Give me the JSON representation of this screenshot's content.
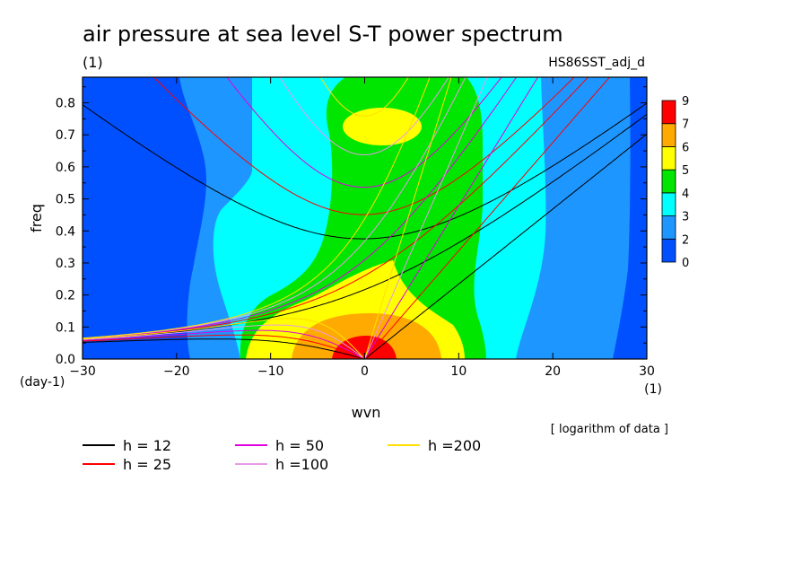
{
  "header": {
    "title": "air pressure at sea level S-T power spectrum",
    "units": "(1)",
    "experiment": "HS86SST_adj_d"
  },
  "axes": {
    "x_label": "wvn",
    "x_unit": "(1)",
    "y_label": "freq",
    "y_unit": "(day-1)",
    "x_ticks": [
      "-30",
      "-20",
      "-10",
      "0",
      "10",
      "20",
      "30"
    ],
    "y_ticks": [
      "0.0",
      "0.1",
      "0.2",
      "0.3",
      "0.4",
      "0.5",
      "0.6",
      "0.7",
      "0.8"
    ]
  },
  "colorbar": {
    "labels": [
      "0",
      "2",
      "3",
      "4",
      "5",
      "6",
      "7",
      "9"
    ],
    "colors": [
      "#0050ff",
      "#1e96ff",
      "#00ffff",
      "#00e600",
      "#ffff00",
      "#ffaa00",
      "#ff0000"
    ]
  },
  "note": "[ logarithm of data ]",
  "legend": [
    {
      "label": "h = 12",
      "color": "#000000"
    },
    {
      "label": "h = 25",
      "color": "#ff0000"
    },
    {
      "label": "h = 50",
      "color": "#e000e0"
    },
    {
      "label": "h =100",
      "color": "#e89ae8"
    },
    {
      "label": "h =200",
      "color": "#ffe000"
    }
  ],
  "chart_data": {
    "type": "heatmap",
    "title": "air pressure at sea level S-T power spectrum",
    "xlabel": "wvn",
    "ylabel": "freq",
    "xlim": [
      -30,
      30
    ],
    "ylim": [
      0,
      0.88
    ],
    "levels": [
      0,
      2,
      3,
      4,
      5,
      6,
      7,
      9
    ],
    "scale": "logarithm of data",
    "dispersion_curves": {
      "equivalent_depths_m": [
        12,
        25,
        50,
        100,
        200
      ],
      "colors": [
        "#000000",
        "#ff0000",
        "#e000e0",
        "#e89ae8",
        "#ffe000"
      ]
    },
    "regions": [
      {
        "level": "7-9",
        "desc": "near wvn 0, freq 0-0.07"
      },
      {
        "level": "6-7",
        "desc": "wvn -8..8, freq 0-0.14"
      },
      {
        "level": "5-6",
        "desc": "wvn -11..10, freq 0-0.30; island near wvn 2, freq 0.72-0.80"
      },
      {
        "level": "4-5",
        "desc": "central wvn -14..13, all freq"
      },
      {
        "level": "3-4",
        "desc": "wvn -24..18"
      },
      {
        "level": "2-3",
        "desc": "wvn -25..27"
      },
      {
        "level": "0-2",
        "desc": "edges wvn < -23 and > 27"
      }
    ]
  }
}
